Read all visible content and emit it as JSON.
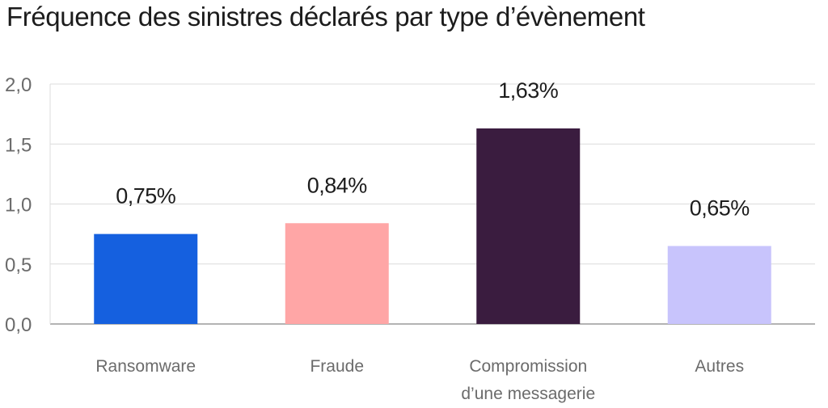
{
  "chart_data": {
    "type": "bar",
    "title": "Fréquence des sinistres déclarés par type d’évènement",
    "xlabel": "",
    "ylabel": "",
    "ylim": [
      0,
      2.0
    ],
    "yticks": [
      "0,0",
      "0,5",
      "1,0",
      "1,5",
      "2,0"
    ],
    "ytick_values": [
      0,
      0.5,
      1.0,
      1.5,
      2.0
    ],
    "grid": true,
    "legend": "none",
    "categories": [
      [
        "Ransomware"
      ],
      [
        "Fraude"
      ],
      [
        "Compromission",
        "d’une messagerie"
      ],
      [
        "Autres"
      ]
    ],
    "values": [
      0.75,
      0.84,
      1.63,
      0.65
    ],
    "value_labels": [
      "0,75%",
      "0,84%",
      "1,63%",
      "0,65%"
    ],
    "colors": [
      "#1560df",
      "#ffa6a6",
      "#3a1c3f",
      "#c8c4fc"
    ]
  }
}
